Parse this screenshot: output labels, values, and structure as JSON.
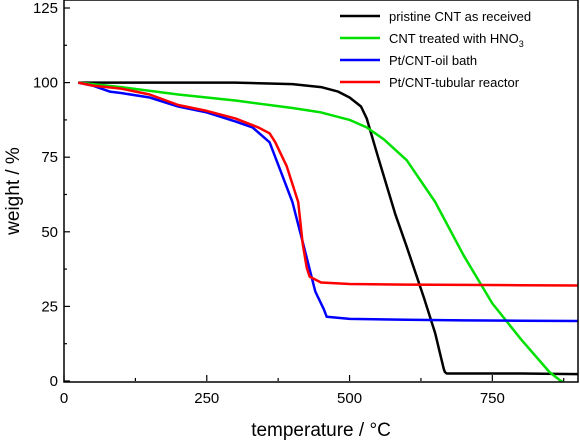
{
  "chart_data": {
    "type": "line",
    "xlabel": "temperature / °C",
    "ylabel": "weight / %",
    "xlim": [
      0,
      900
    ],
    "ylim": [
      0,
      125
    ],
    "xticks": [
      0,
      250,
      500,
      750
    ],
    "yticks": [
      0,
      25,
      50,
      75,
      100,
      125
    ],
    "grid": false,
    "legend_position": "top-right",
    "series": [
      {
        "name": "pristine CNT as received",
        "color": "#000000",
        "x": [
          25,
          100,
          200,
          300,
          400,
          450,
          480,
          500,
          520,
          530,
          550,
          580,
          600,
          630,
          650,
          660,
          665,
          667,
          670,
          700,
          800,
          900
        ],
        "y": [
          100,
          100,
          100,
          100,
          99.5,
          98.5,
          97,
          95,
          92,
          88,
          75,
          56,
          45,
          28,
          16,
          8,
          4,
          3,
          2.5,
          2.5,
          2.5,
          2.3
        ]
      },
      {
        "name": "CNT treated with HNO3",
        "color": "#00e000",
        "x": [
          25,
          100,
          200,
          300,
          400,
          450,
          500,
          530,
          560,
          600,
          650,
          700,
          750,
          800,
          850,
          870,
          880
        ],
        "y": [
          100,
          98.5,
          96,
          94,
          91.5,
          90,
          87.5,
          85,
          81,
          74,
          60,
          42,
          26,
          14,
          3,
          0,
          -1
        ]
      },
      {
        "name": "Pt/CNT-oil bath",
        "color": "#0000ff",
        "x": [
          25,
          50,
          80,
          100,
          150,
          200,
          250,
          300,
          330,
          360,
          380,
          400,
          420,
          440,
          455,
          460,
          500,
          600,
          700,
          800,
          900
        ],
        "y": [
          100,
          99,
          97,
          96.5,
          95,
          92,
          90,
          87,
          85,
          80,
          70,
          60,
          45,
          30,
          24,
          21.5,
          20.8,
          20.5,
          20.3,
          20.2,
          20.1
        ]
      },
      {
        "name": "Pt/CNT-tubular reactor",
        "color": "#ff0000",
        "x": [
          25,
          50,
          100,
          150,
          200,
          250,
          300,
          340,
          360,
          370,
          390,
          410,
          418,
          425,
          430,
          450,
          500,
          600,
          700,
          800,
          900
        ],
        "y": [
          100,
          99,
          98,
          96,
          92.5,
          90.5,
          88,
          85,
          83,
          80,
          72,
          60,
          46,
          38,
          35,
          33,
          32.5,
          32.3,
          32.2,
          32.1,
          32
        ]
      }
    ],
    "legend": [
      {
        "text": "pristine CNT as received",
        "color": "#000000"
      },
      {
        "text": "CNT treated with HNO",
        "sub": "3",
        "color": "#00e000"
      },
      {
        "text": "Pt/CNT-oil bath",
        "color": "#0000ff"
      },
      {
        "text": "Pt/CNT-tubular reactor",
        "color": "#ff0000"
      }
    ]
  }
}
